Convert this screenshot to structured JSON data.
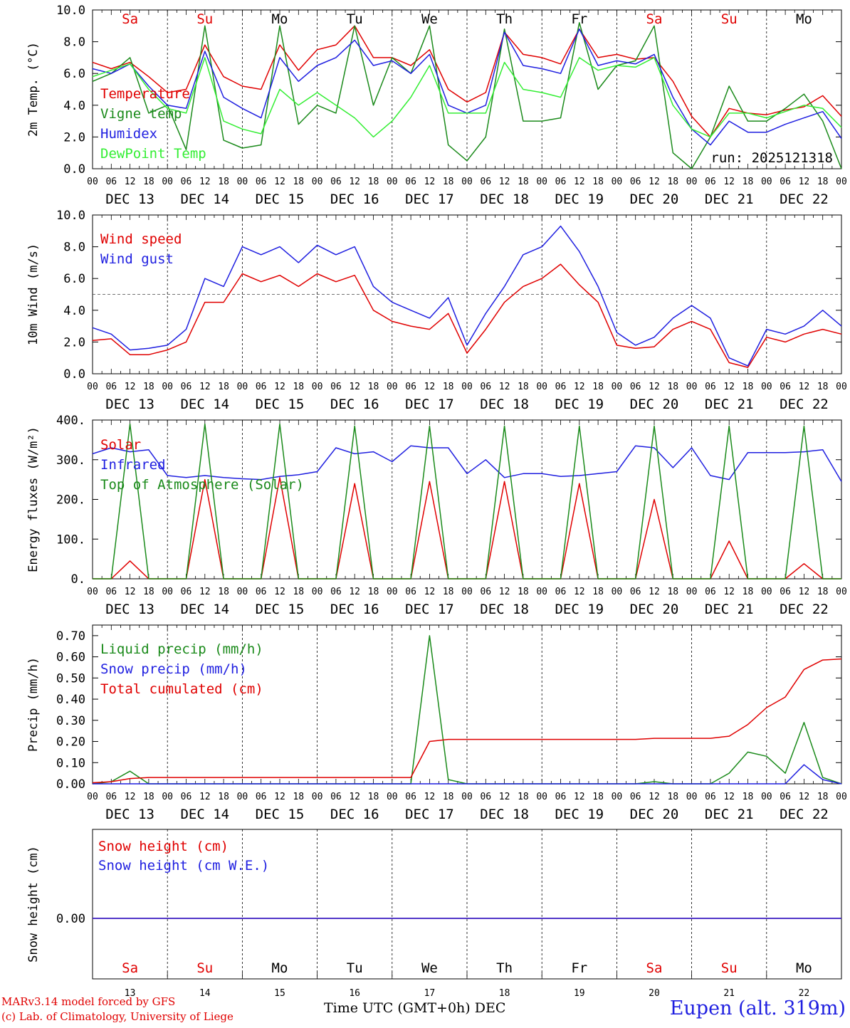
{
  "station": "Eupen (alt. 319m)",
  "credit_line1": "MARv3.14 model forced by GFS",
  "credit_line2": "(c) Lab. of Climatology, University of Liege",
  "time_axis_label": "Time UTC (GMT+0h)",
  "month_label": "DEC",
  "run_label": "run: 2025121318",
  "days": [
    "Sa",
    "Su",
    "Mo",
    "Tu",
    "We",
    "Th",
    "Fr",
    "Sa",
    "Su",
    "Mo"
  ],
  "day_colors": [
    "#e00000",
    "#e00000",
    "#000000",
    "#000000",
    "#000000",
    "#000000",
    "#000000",
    "#e00000",
    "#e00000",
    "#000000"
  ],
  "dates": [
    "DEC 13",
    "DEC 14",
    "DEC 15",
    "DEC 16",
    "DEC 17",
    "DEC 18",
    "DEC 19",
    "DEC 20",
    "DEC 21",
    "DEC 22"
  ],
  "date_numbers": [
    "13",
    "14",
    "15",
    "16",
    "17",
    "18",
    "19",
    "20",
    "21",
    "22"
  ],
  "hour_ticks": [
    "00",
    "06",
    "12",
    "18"
  ],
  "last_tick": "00",
  "chart_data": [
    {
      "type": "line",
      "ylabel": "2m Temp. (°C)",
      "ylim": [
        0,
        10
      ],
      "yticks": [
        "0.0",
        "2.0",
        "4.0",
        "6.0",
        "8.0",
        "10.0"
      ],
      "x_hours": [
        0,
        6,
        12,
        18,
        24,
        30,
        36,
        42,
        48,
        54,
        60,
        66,
        72,
        78,
        84,
        90,
        96,
        102,
        108,
        114,
        120,
        126,
        132,
        138,
        144,
        150,
        156,
        162,
        168,
        174,
        180,
        186,
        192,
        198,
        204,
        210,
        216,
        222,
        228,
        234,
        240
      ],
      "series": [
        {
          "name": "Temperature",
          "color": "#e00000",
          "values": [
            6.7,
            6.3,
            6.7,
            5.8,
            4.8,
            5.0,
            7.8,
            5.8,
            5.2,
            5.0,
            7.8,
            6.2,
            7.5,
            7.8,
            9.0,
            7.0,
            7.0,
            6.5,
            7.5,
            5.0,
            4.2,
            4.8,
            8.6,
            7.2,
            7.0,
            6.6,
            8.8,
            7.0,
            7.2,
            6.9,
            7.0,
            5.5,
            3.3,
            2.0,
            3.8,
            3.5,
            3.4,
            3.7,
            3.9,
            4.6,
            3.3
          ]
        },
        {
          "name": "Vigne temp",
          "color": "#1a8a1a",
          "values": [
            5.5,
            6.0,
            7.0,
            3.5,
            4.0,
            1.2,
            9.0,
            1.8,
            1.3,
            1.5,
            9.0,
            2.8,
            4.0,
            3.5,
            9.0,
            4.0,
            7.0,
            6.0,
            9.0,
            1.5,
            0.5,
            2.0,
            8.8,
            3.0,
            3.0,
            3.2,
            9.2,
            5.0,
            6.5,
            6.8,
            9.0,
            1.0,
            -0.5,
            2.0,
            5.2,
            3.0,
            3.0,
            3.8,
            4.7,
            3.0,
            0.0
          ]
        },
        {
          "name": "Humidex",
          "color": "#1f1fe0",
          "values": [
            6.3,
            6.0,
            6.6,
            5.2,
            4.0,
            3.8,
            7.4,
            4.5,
            3.8,
            3.2,
            7.0,
            5.5,
            6.5,
            7.0,
            8.1,
            6.5,
            6.8,
            6.0,
            7.2,
            4.0,
            3.5,
            4.0,
            8.6,
            6.5,
            6.3,
            6.0,
            8.8,
            6.5,
            6.8,
            6.6,
            7.2,
            4.5,
            2.5,
            1.5,
            3.0,
            2.3,
            2.3,
            2.8,
            3.2,
            3.6,
            1.9
          ]
        },
        {
          "name": "DewPoint Temp",
          "color": "#33ee33",
          "values": [
            5.8,
            6.2,
            6.6,
            5.0,
            3.8,
            3.5,
            7.0,
            3.0,
            2.5,
            2.2,
            5.0,
            4.0,
            4.8,
            4.0,
            3.2,
            2.0,
            3.0,
            4.5,
            6.5,
            3.5,
            3.5,
            3.5,
            6.7,
            5.0,
            4.8,
            4.5,
            7.0,
            6.2,
            6.5,
            6.4,
            7.0,
            4.0,
            2.5,
            2.0,
            3.5,
            3.5,
            3.2,
            3.6,
            4.0,
            3.8,
            2.6
          ]
        }
      ]
    },
    {
      "type": "line",
      "ylabel": "10m Wind (m/s)",
      "ylim": [
        0,
        10
      ],
      "yticks": [
        "0.0",
        "2.0",
        "4.0",
        "6.0",
        "8.0",
        "10.0"
      ],
      "reference_line": 5,
      "x_hours": [
        0,
        6,
        12,
        18,
        24,
        30,
        36,
        42,
        48,
        54,
        60,
        66,
        72,
        78,
        84,
        90,
        96,
        102,
        108,
        114,
        120,
        126,
        132,
        138,
        144,
        150,
        156,
        162,
        168,
        174,
        180,
        186,
        192,
        198,
        204,
        210,
        216,
        222,
        228,
        234,
        240
      ],
      "series": [
        {
          "name": "Wind speed",
          "color": "#e00000",
          "values": [
            2.1,
            2.2,
            1.2,
            1.2,
            1.5,
            2.0,
            4.5,
            4.5,
            6.3,
            5.8,
            6.2,
            5.5,
            6.3,
            5.8,
            6.2,
            4.0,
            3.3,
            3.0,
            2.8,
            3.8,
            1.3,
            2.8,
            4.5,
            5.5,
            6.0,
            6.9,
            5.6,
            4.5,
            1.8,
            1.6,
            1.7,
            2.8,
            3.3,
            2.8,
            0.7,
            0.4,
            2.3,
            2.0,
            2.5,
            2.8,
            2.5
          ]
        },
        {
          "name": "Wind gust",
          "color": "#1f1fe0",
          "values": [
            2.9,
            2.5,
            1.5,
            1.6,
            1.8,
            2.8,
            6.0,
            5.5,
            8.0,
            7.5,
            8.0,
            7.0,
            8.1,
            7.5,
            8.0,
            5.5,
            4.5,
            4.0,
            3.5,
            4.8,
            1.8,
            3.8,
            5.5,
            7.5,
            8.0,
            9.3,
            7.7,
            5.5,
            2.6,
            1.8,
            2.3,
            3.5,
            4.3,
            3.5,
            1.0,
            0.5,
            2.8,
            2.5,
            3.0,
            4.0,
            3.0
          ]
        }
      ]
    },
    {
      "type": "line",
      "ylabel": "Energy fluxes (W/m²)",
      "ylim": [
        0,
        400
      ],
      "yticks": [
        "0.",
        "100.",
        "200.",
        "300.",
        "400."
      ],
      "x_hours": [
        0,
        6,
        12,
        18,
        24,
        30,
        36,
        42,
        48,
        54,
        60,
        66,
        72,
        78,
        84,
        90,
        96,
        102,
        108,
        114,
        120,
        126,
        132,
        138,
        144,
        150,
        156,
        162,
        168,
        174,
        180,
        186,
        192,
        198,
        204,
        210,
        216,
        222,
        228,
        234,
        240
      ],
      "series": [
        {
          "name": "Solar",
          "color": "#e00000",
          "values": [
            0,
            0,
            45,
            0,
            0,
            0,
            250,
            0,
            0,
            0,
            255,
            0,
            0,
            0,
            240,
            0,
            0,
            0,
            245,
            0,
            0,
            0,
            245,
            0,
            0,
            0,
            240,
            0,
            0,
            0,
            200,
            0,
            0,
            0,
            95,
            0,
            0,
            0,
            38,
            0,
            0
          ]
        },
        {
          "name": "Infrared",
          "color": "#1f1fe0",
          "values": [
            315,
            330,
            320,
            325,
            260,
            255,
            260,
            255,
            252,
            250,
            258,
            262,
            270,
            330,
            315,
            320,
            295,
            335,
            330,
            330,
            265,
            300,
            255,
            265,
            265,
            258,
            260,
            265,
            270,
            335,
            330,
            280,
            330,
            260,
            250,
            318,
            318,
            318,
            320,
            325,
            245
          ]
        },
        {
          "name": "Top of Atmosphere (Solar)",
          "color": "#1a8a1a",
          "values": [
            0,
            0,
            390,
            0,
            0,
            0,
            390,
            0,
            0,
            0,
            390,
            0,
            0,
            0,
            385,
            0,
            0,
            0,
            385,
            0,
            0,
            0,
            385,
            0,
            0,
            0,
            385,
            0,
            0,
            0,
            385,
            0,
            0,
            0,
            385,
            0,
            0,
            0,
            385,
            0,
            0
          ]
        }
      ]
    },
    {
      "type": "line",
      "ylabel": "Precip (mm/h)",
      "ylim": [
        0,
        0.75
      ],
      "yticks": [
        "0.00",
        "0.10",
        "0.20",
        "0.30",
        "0.40",
        "0.50",
        "0.60",
        "0.70"
      ],
      "x_hours": [
        0,
        6,
        12,
        18,
        24,
        30,
        36,
        42,
        48,
        54,
        60,
        66,
        72,
        78,
        84,
        90,
        96,
        102,
        108,
        114,
        120,
        126,
        132,
        138,
        144,
        150,
        156,
        162,
        168,
        174,
        180,
        186,
        192,
        198,
        204,
        210,
        216,
        222,
        228,
        234,
        240
      ],
      "series": [
        {
          "name": "Liquid precip (mm/h)",
          "color": "#1a8a1a",
          "values": [
            0,
            0.01,
            0.06,
            0,
            0,
            0,
            0,
            0,
            0,
            0,
            0,
            0,
            0,
            0,
            0,
            0,
            0,
            0,
            0.7,
            0.02,
            0,
            0,
            0,
            0,
            0,
            0,
            0,
            0,
            0,
            0,
            0.01,
            0,
            0,
            0,
            0.05,
            0.15,
            0.13,
            0.05,
            0.29,
            0.03,
            0
          ]
        },
        {
          "name": "Snow precip (mm/h)",
          "color": "#1f1fe0",
          "values": [
            0,
            0,
            0,
            0,
            0,
            0,
            0,
            0,
            0,
            0,
            0,
            0,
            0,
            0,
            0,
            0,
            0,
            0,
            0,
            0,
            0,
            0,
            0,
            0,
            0,
            0,
            0,
            0,
            0,
            0,
            0,
            0,
            0,
            0,
            0,
            0,
            0,
            0,
            0.09,
            0.02,
            0
          ]
        },
        {
          "name": "Total cumulated (cm)",
          "color": "#e00000",
          "values": [
            0.005,
            0.01,
            0.025,
            0.03,
            0.03,
            0.03,
            0.03,
            0.03,
            0.03,
            0.03,
            0.03,
            0.03,
            0.03,
            0.03,
            0.03,
            0.03,
            0.03,
            0.03,
            0.2,
            0.21,
            0.21,
            0.21,
            0.21,
            0.21,
            0.21,
            0.21,
            0.21,
            0.21,
            0.21,
            0.21,
            0.215,
            0.215,
            0.215,
            0.215,
            0.225,
            0.28,
            0.36,
            0.41,
            0.54,
            0.585,
            0.59
          ]
        }
      ]
    },
    {
      "type": "line",
      "ylabel": "Snow height (cm)",
      "yticks": [
        "0.00"
      ],
      "x_hours": [
        0,
        240
      ],
      "series": [
        {
          "name": "Snow height (cm)",
          "color": "#e00000",
          "values": [
            0,
            0
          ]
        },
        {
          "name": "Snow height (cm W.E.)",
          "color": "#1f1fe0",
          "values": [
            0,
            0
          ]
        }
      ]
    }
  ]
}
